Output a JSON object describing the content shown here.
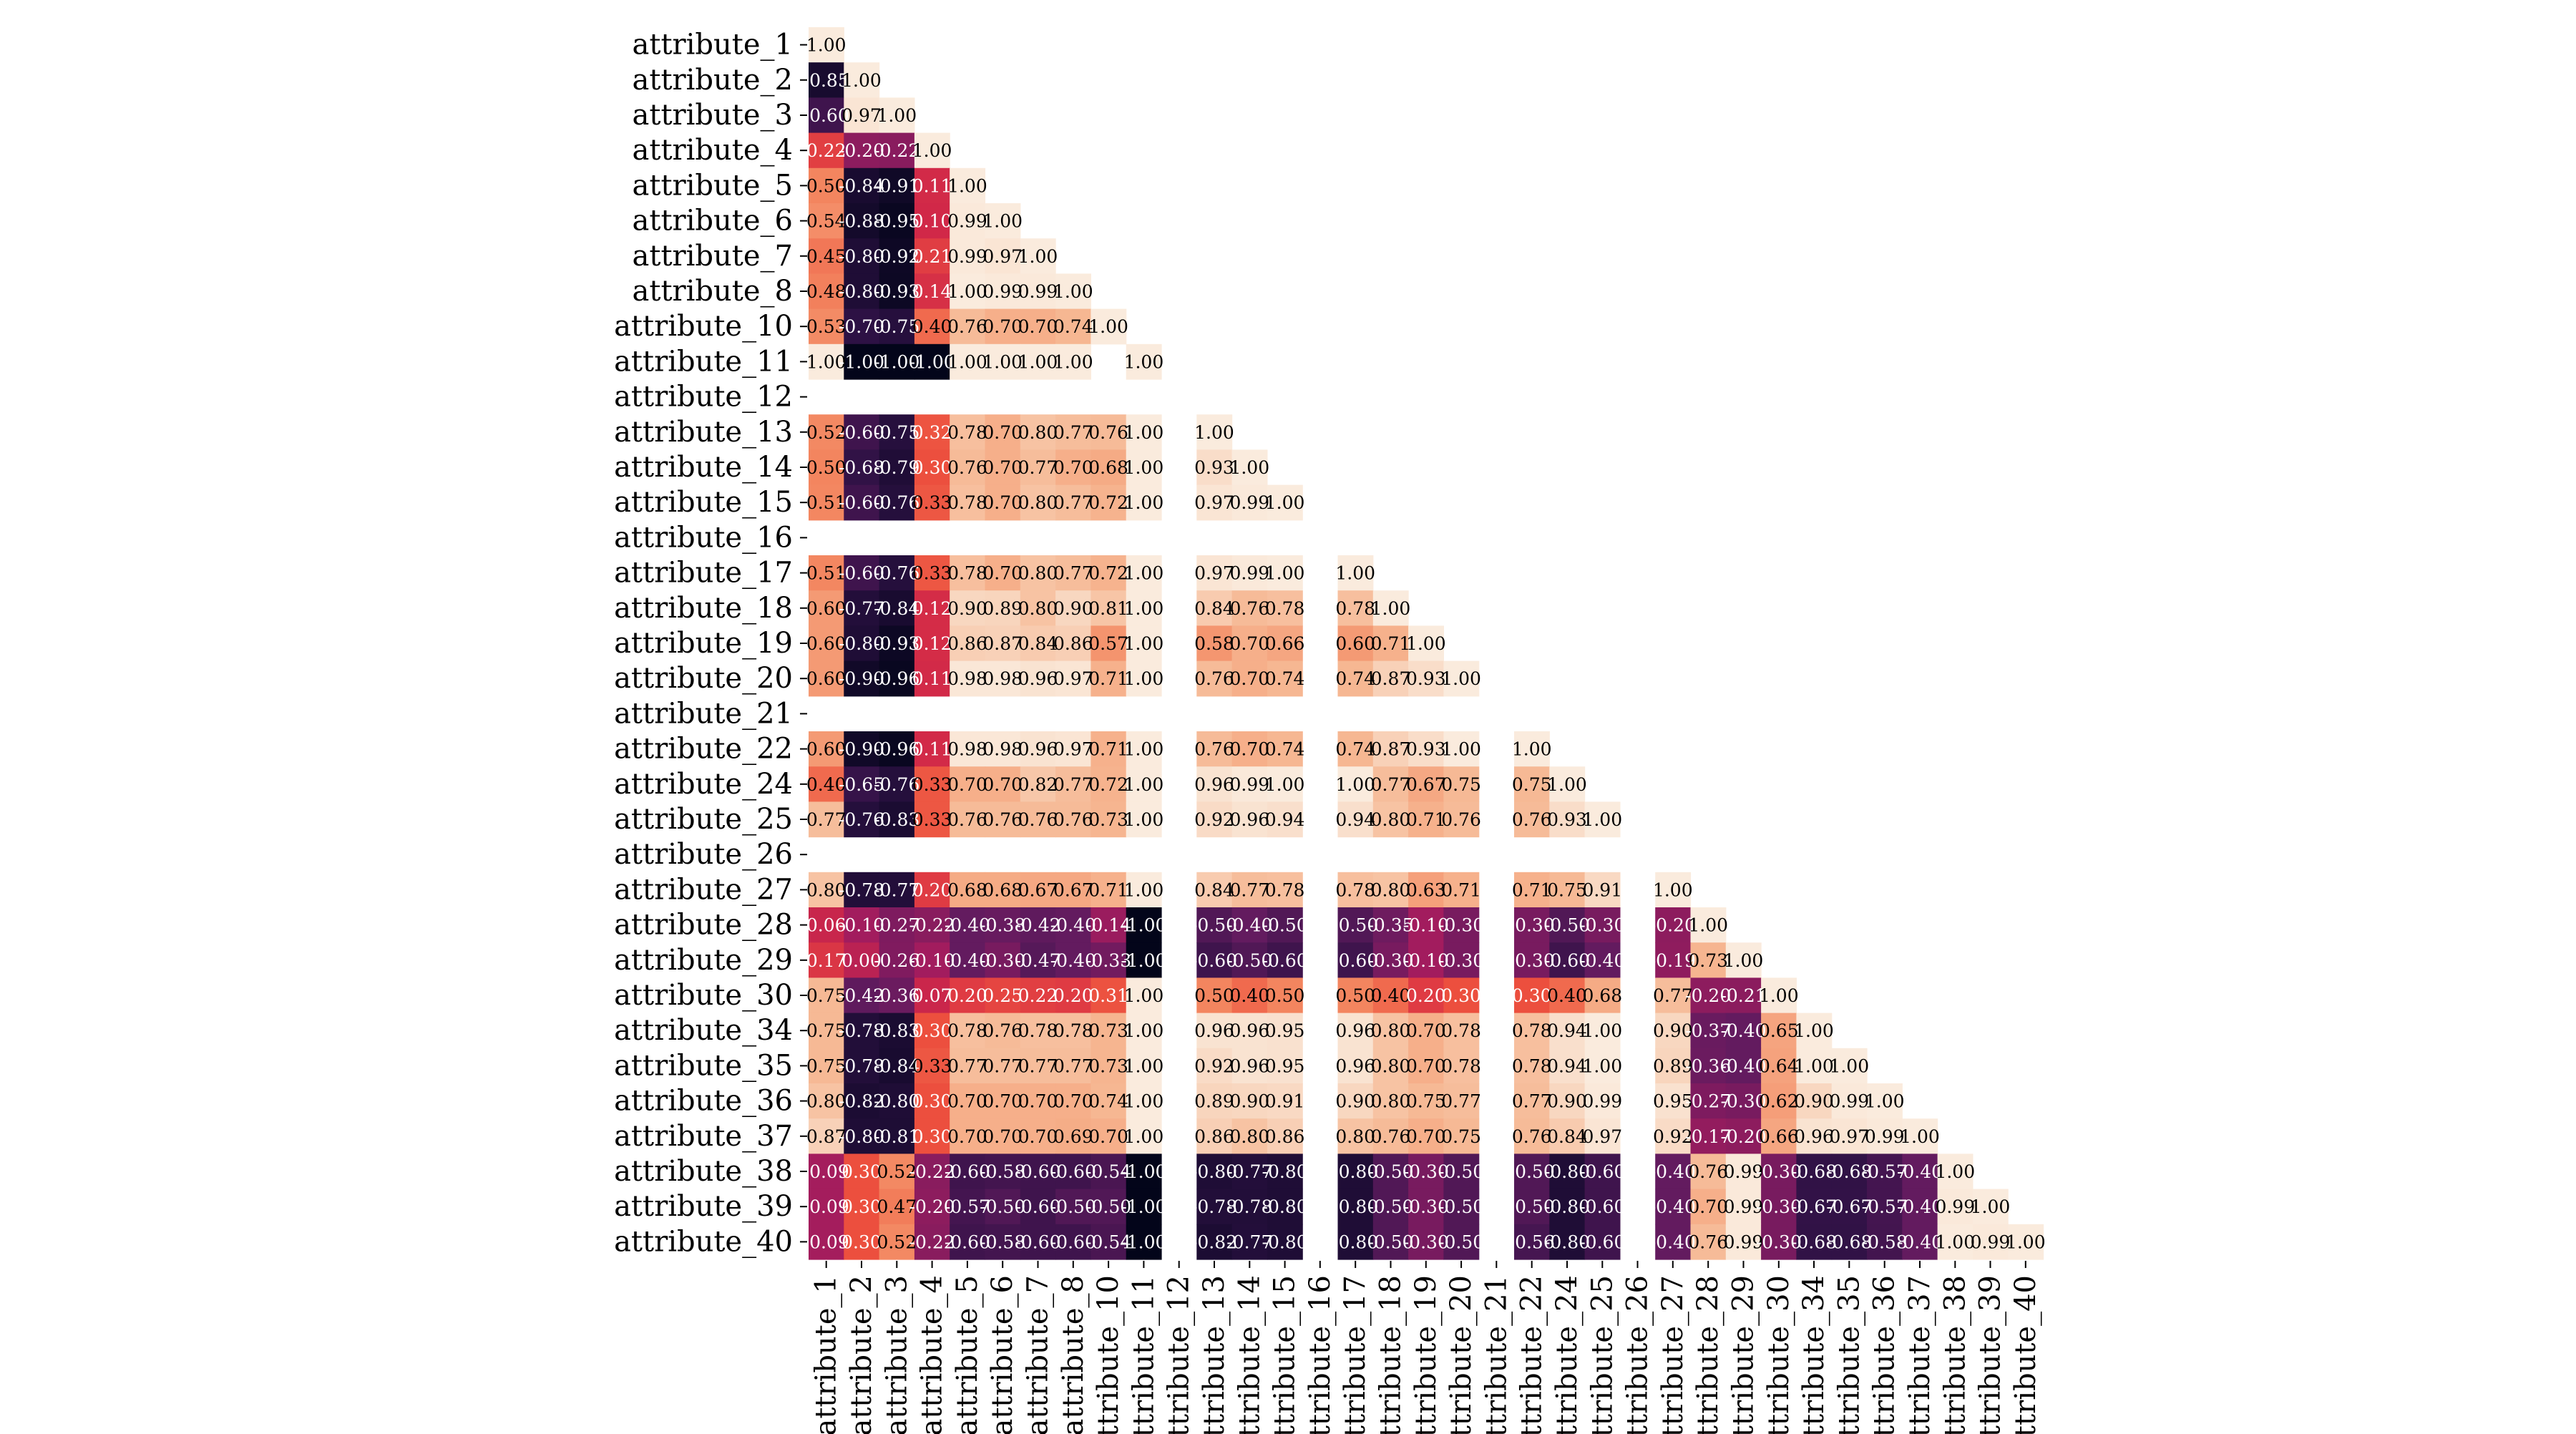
{
  "chart_data": {
    "type": "heatmap",
    "title": "",
    "xlabel": "",
    "ylabel": "",
    "mask": "upper-triangle",
    "colorscale": "rocket",
    "vrange": [
      -1,
      1
    ],
    "labels": [
      "attribute_1",
      "attribute_2",
      "attribute_3",
      "attribute_4",
      "attribute_5",
      "attribute_6",
      "attribute_7",
      "attribute_8",
      "attribute_10",
      "attribute_11",
      "attribute_12",
      "attribute_13",
      "attribute_14",
      "attribute_15",
      "attribute_16",
      "attribute_17",
      "attribute_18",
      "attribute_19",
      "attribute_20",
      "attribute_21",
      "attribute_22",
      "attribute_24",
      "attribute_25",
      "attribute_26",
      "attribute_27",
      "attribute_28",
      "attribute_29",
      "attribute_30",
      "attribute_34",
      "attribute_35",
      "attribute_36",
      "attribute_37",
      "attribute_38",
      "attribute_39",
      "attribute_40"
    ],
    "rows": [
      [
        1.0
      ],
      [
        -0.85,
        1.0
      ],
      [
        -0.6,
        0.97,
        1.0
      ],
      [
        0.22,
        -0.2,
        -0.22,
        1.0
      ],
      [
        0.5,
        -0.84,
        -0.91,
        0.11,
        1.0
      ],
      [
        0.54,
        -0.88,
        -0.95,
        0.1,
        0.99,
        1.0
      ],
      [
        0.45,
        -0.8,
        -0.92,
        0.21,
        0.99,
        0.97,
        1.0
      ],
      [
        0.48,
        -0.8,
        -0.93,
        0.14,
        1.0,
        0.99,
        0.99,
        1.0
      ],
      [
        0.53,
        -0.7,
        -0.75,
        0.4,
        0.76,
        0.7,
        0.7,
        0.74,
        1.0
      ],
      [
        1.0,
        -1.0,
        -1.0,
        -1.0,
        1.0,
        1.0,
        1.0,
        1.0,
        null,
        1.0
      ],
      [
        null,
        null,
        null,
        null,
        null,
        null,
        null,
        null,
        null,
        null,
        null
      ],
      [
        0.52,
        -0.6,
        -0.75,
        0.32,
        0.78,
        0.7,
        0.8,
        0.77,
        0.76,
        1.0,
        null,
        1.0
      ],
      [
        0.5,
        -0.68,
        -0.79,
        0.3,
        0.76,
        0.7,
        0.77,
        0.7,
        0.68,
        1.0,
        null,
        0.93,
        1.0
      ],
      [
        0.51,
        -0.6,
        -0.76,
        0.33,
        0.78,
        0.7,
        0.8,
        0.77,
        0.72,
        1.0,
        null,
        0.97,
        0.99,
        1.0
      ],
      [
        null,
        null,
        null,
        null,
        null,
        null,
        null,
        null,
        null,
        null,
        null,
        null,
        null,
        null,
        null
      ],
      [
        0.51,
        -0.6,
        -0.76,
        0.33,
        0.78,
        0.7,
        0.8,
        0.77,
        0.72,
        1.0,
        null,
        0.97,
        0.99,
        1.0,
        null,
        1.0
      ],
      [
        0.6,
        -0.77,
        -0.84,
        0.12,
        0.9,
        0.89,
        0.8,
        0.9,
        0.81,
        1.0,
        null,
        0.84,
        0.76,
        0.78,
        null,
        0.78,
        1.0
      ],
      [
        0.6,
        -0.8,
        -0.93,
        0.12,
        0.86,
        0.87,
        0.84,
        0.86,
        0.57,
        1.0,
        null,
        0.58,
        0.7,
        0.66,
        null,
        0.6,
        0.71,
        1.0
      ],
      [
        0.6,
        -0.9,
        -0.96,
        0.11,
        0.98,
        0.98,
        0.96,
        0.97,
        0.71,
        1.0,
        null,
        0.76,
        0.7,
        0.74,
        null,
        0.74,
        0.87,
        0.93,
        1.0
      ],
      [
        null,
        null,
        null,
        null,
        null,
        null,
        null,
        null,
        null,
        null,
        null,
        null,
        null,
        null,
        null,
        null,
        null,
        null,
        null,
        null
      ],
      [
        0.6,
        -0.9,
        -0.96,
        0.11,
        0.98,
        0.98,
        0.96,
        0.97,
        0.71,
        1.0,
        null,
        0.76,
        0.7,
        0.74,
        null,
        0.74,
        0.87,
        0.93,
        1.0,
        null,
        1.0
      ],
      [
        0.4,
        -0.65,
        -0.76,
        0.33,
        0.7,
        0.7,
        0.82,
        0.77,
        0.72,
        1.0,
        null,
        0.96,
        0.99,
        1.0,
        null,
        1.0,
        0.77,
        0.67,
        0.75,
        null,
        0.75,
        1.0
      ],
      [
        0.77,
        -0.76,
        -0.83,
        0.33,
        0.76,
        0.76,
        0.76,
        0.76,
        0.73,
        1.0,
        null,
        0.92,
        0.96,
        0.94,
        null,
        0.94,
        0.8,
        0.71,
        0.76,
        null,
        0.76,
        0.93,
        1.0
      ],
      [
        null,
        null,
        null,
        null,
        null,
        null,
        null,
        null,
        null,
        null,
        null,
        null,
        null,
        null,
        null,
        null,
        null,
        null,
        null,
        null,
        null,
        null,
        null,
        null
      ],
      [
        0.8,
        -0.78,
        -0.77,
        0.2,
        0.68,
        0.68,
        0.67,
        0.67,
        0.71,
        1.0,
        null,
        0.84,
        0.77,
        0.78,
        null,
        0.78,
        0.8,
        0.63,
        0.71,
        null,
        0.71,
        0.75,
        0.91,
        null,
        1.0
      ],
      [
        0.06,
        -0.1,
        -0.27,
        -0.22,
        -0.4,
        -0.38,
        -0.42,
        -0.4,
        -0.14,
        -1.0,
        null,
        -0.5,
        -0.4,
        -0.5,
        null,
        -0.5,
        -0.35,
        -0.1,
        -0.3,
        null,
        -0.3,
        -0.5,
        -0.3,
        null,
        -0.2,
        1.0
      ],
      [
        0.17,
        -0.0,
        -0.26,
        -0.1,
        -0.4,
        -0.3,
        -0.47,
        -0.4,
        -0.33,
        -1.0,
        null,
        -0.6,
        -0.5,
        -0.6,
        null,
        -0.6,
        -0.3,
        -0.1,
        -0.3,
        null,
        -0.3,
        -0.6,
        -0.4,
        null,
        -0.19,
        0.73,
        1.0
      ],
      [
        0.75,
        -0.42,
        -0.36,
        0.07,
        0.2,
        0.25,
        0.22,
        0.2,
        0.31,
        1.0,
        null,
        0.5,
        0.4,
        0.5,
        null,
        0.5,
        0.4,
        0.2,
        0.3,
        null,
        0.3,
        0.4,
        0.68,
        null,
        0.77,
        -0.2,
        -0.21,
        1.0
      ],
      [
        0.75,
        -0.78,
        -0.83,
        0.3,
        0.78,
        0.76,
        0.78,
        0.78,
        0.73,
        1.0,
        null,
        0.96,
        0.96,
        0.95,
        null,
        0.96,
        0.8,
        0.7,
        0.78,
        null,
        0.78,
        0.94,
        1.0,
        null,
        0.9,
        -0.37,
        -0.4,
        0.65,
        1.0
      ],
      [
        0.75,
        -0.78,
        -0.84,
        0.33,
        0.77,
        0.77,
        0.77,
        0.77,
        0.73,
        1.0,
        null,
        0.92,
        0.96,
        0.95,
        null,
        0.96,
        0.8,
        0.7,
        0.78,
        null,
        0.78,
        0.94,
        1.0,
        null,
        0.89,
        -0.36,
        -0.4,
        0.64,
        1.0,
        1.0
      ],
      [
        0.8,
        -0.82,
        -0.8,
        0.3,
        0.7,
        0.7,
        0.7,
        0.7,
        0.74,
        1.0,
        null,
        0.89,
        0.9,
        0.91,
        null,
        0.9,
        0.8,
        0.75,
        0.77,
        null,
        0.77,
        0.9,
        0.99,
        null,
        0.95,
        -0.27,
        -0.3,
        0.62,
        0.9,
        0.99,
        1.0
      ],
      [
        0.87,
        -0.8,
        -0.81,
        0.3,
        0.7,
        0.7,
        0.7,
        0.69,
        0.7,
        1.0,
        null,
        0.86,
        0.8,
        0.86,
        null,
        0.8,
        0.76,
        0.7,
        0.75,
        null,
        0.76,
        0.84,
        0.97,
        null,
        0.92,
        -0.17,
        -0.2,
        0.66,
        0.96,
        0.97,
        0.99,
        1.0
      ],
      [
        -0.09,
        0.3,
        0.52,
        -0.22,
        -0.6,
        -0.58,
        -0.6,
        -0.6,
        -0.54,
        -1.0,
        null,
        -0.8,
        -0.77,
        -0.8,
        null,
        -0.8,
        -0.5,
        -0.3,
        -0.5,
        null,
        -0.5,
        -0.8,
        -0.6,
        null,
        -0.4,
        0.76,
        0.99,
        -0.3,
        -0.68,
        -0.68,
        -0.57,
        -0.4,
        1.0
      ],
      [
        -0.09,
        0.3,
        0.47,
        -0.2,
        -0.57,
        -0.5,
        -0.6,
        -0.5,
        -0.5,
        -1.0,
        null,
        -0.78,
        -0.78,
        -0.8,
        null,
        -0.8,
        -0.5,
        -0.3,
        -0.5,
        null,
        -0.5,
        -0.8,
        -0.6,
        null,
        -0.4,
        0.7,
        0.99,
        -0.3,
        -0.67,
        -0.67,
        -0.57,
        -0.4,
        0.99,
        1.0
      ],
      [
        -0.09,
        0.3,
        0.52,
        -0.22,
        -0.6,
        -0.58,
        -0.6,
        -0.6,
        -0.54,
        -1.0,
        null,
        -0.82,
        -0.77,
        -0.8,
        null,
        -0.8,
        -0.5,
        -0.3,
        -0.5,
        null,
        -0.56,
        -0.8,
        -0.6,
        null,
        -0.4,
        0.76,
        0.99,
        -0.3,
        -0.68,
        -0.68,
        -0.58,
        -0.4,
        1.0,
        0.99,
        1.0
      ]
    ]
  }
}
